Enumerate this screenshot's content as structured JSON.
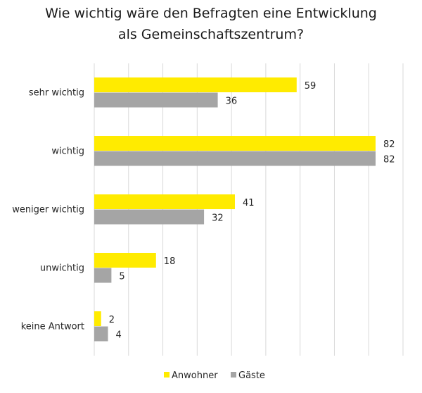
{
  "chart_data": {
    "type": "bar",
    "orientation": "horizontal",
    "title_lines": [
      "Wie wichtig wäre den Befragten eine Entwicklung",
      "als Gemeinschaftszentrum?"
    ],
    "categories": [
      "sehr wichtig",
      "wichtig",
      "weniger wichtig",
      "unwichtig",
      "keine Antwort"
    ],
    "series": [
      {
        "name": "Anwohner",
        "values": [
          59,
          82,
          41,
          18,
          2
        ],
        "color": "#FFEB00"
      },
      {
        "name": "Gäste",
        "values": [
          36,
          82,
          32,
          5,
          4
        ],
        "color": "#A5A5A5"
      }
    ],
    "xlim": [
      0,
      90
    ],
    "xtick_step": 10,
    "grid": true,
    "xlabel": "",
    "ylabel": "",
    "legend_position": "bottom"
  }
}
